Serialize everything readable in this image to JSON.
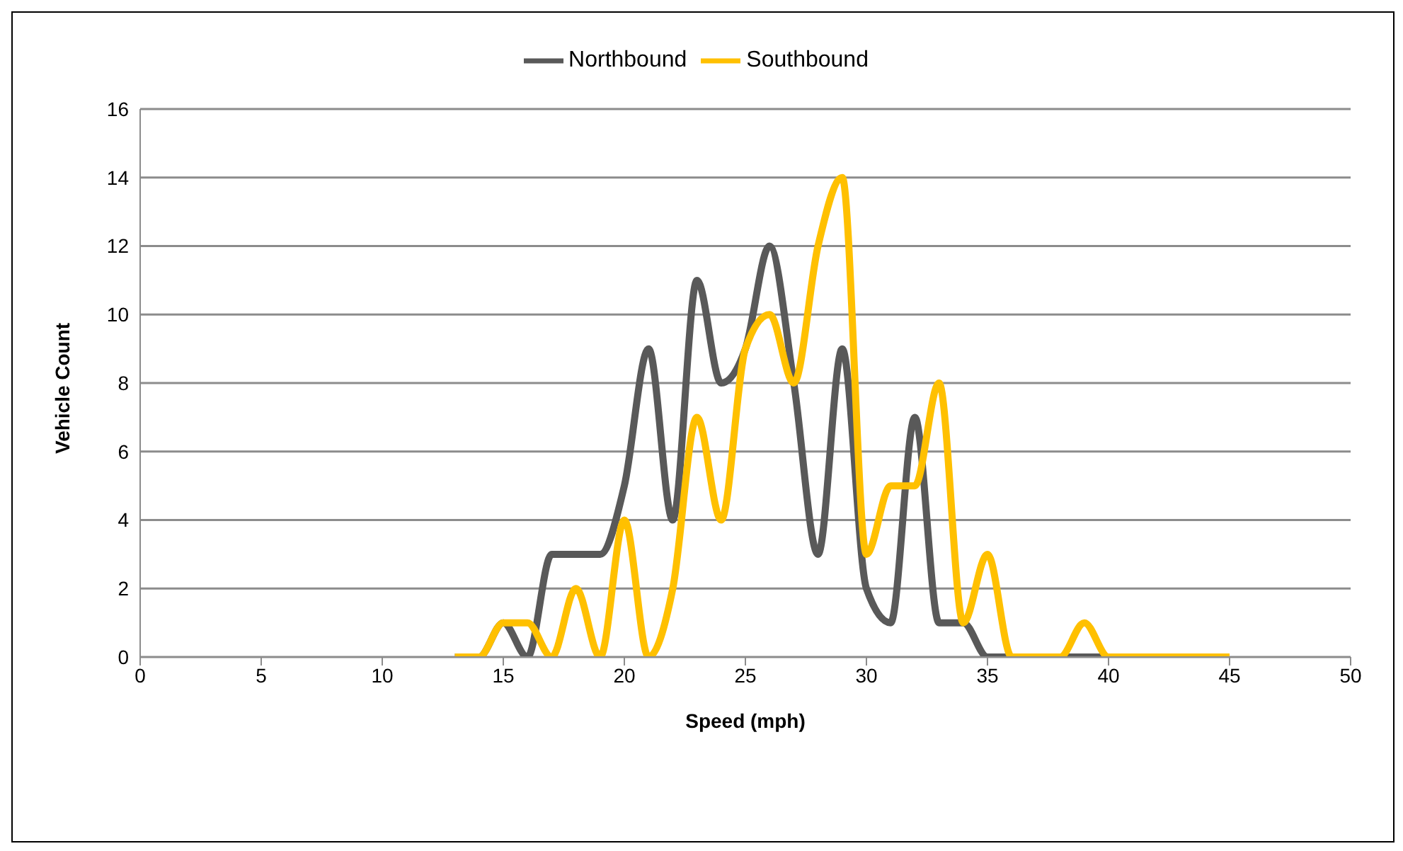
{
  "chart_data": {
    "type": "line",
    "xlabel": "Speed (mph)",
    "ylabel": "Vehicle Count",
    "x": [
      13,
      14,
      15,
      16,
      17,
      18,
      19,
      20,
      21,
      22,
      23,
      24,
      25,
      26,
      27,
      28,
      29,
      30,
      31,
      32,
      33,
      34,
      35,
      36,
      37,
      38,
      39,
      40,
      41,
      42,
      43,
      44,
      45
    ],
    "series": [
      {
        "name": "Northbound",
        "color": "#595959",
        "values": [
          0,
          0,
          1,
          0,
          3,
          3,
          3,
          5,
          9,
          4,
          11,
          8,
          9,
          12,
          8,
          3,
          9,
          2,
          1,
          7,
          1,
          1,
          0,
          0,
          0,
          0,
          0,
          0,
          0,
          0,
          0,
          0,
          0
        ]
      },
      {
        "name": "Southbound",
        "color": "#ffc000",
        "values": [
          0,
          0,
          1,
          1,
          0,
          2,
          0,
          4,
          0,
          2,
          7,
          4,
          9,
          10,
          8,
          12,
          14,
          3,
          5,
          5,
          8,
          1,
          3,
          0,
          0,
          0,
          1,
          0,
          0,
          0,
          0,
          0,
          0
        ]
      }
    ],
    "xlim": [
      0,
      50
    ],
    "xticks": [
      0,
      5,
      10,
      15,
      20,
      25,
      30,
      35,
      40,
      45,
      50
    ],
    "ylim": [
      0,
      16
    ],
    "yticks": [
      0,
      2,
      4,
      6,
      8,
      10,
      12,
      14,
      16
    ],
    "grid": "y",
    "legend": "top",
    "marker": "none",
    "line_style": "solid"
  }
}
